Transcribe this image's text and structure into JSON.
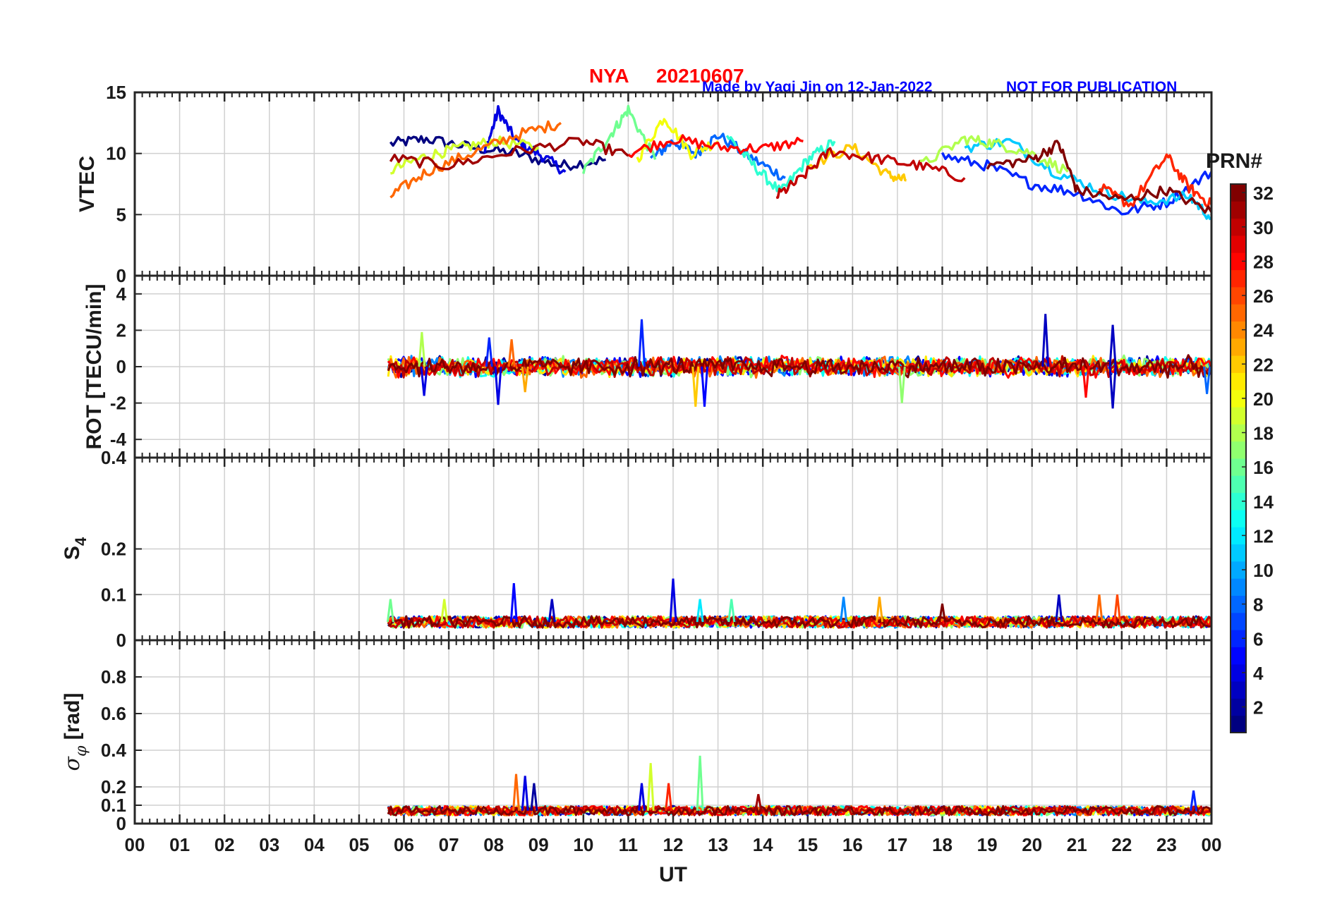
{
  "title": {
    "station": "NYA",
    "date": "20210607",
    "credit": "Made by Yaqi Jin on 12-Jan-2022",
    "notice": "NOT FOR PUBLICATION",
    "station_color": "#ff0000",
    "credit_color": "#0000ff"
  },
  "x_axis": {
    "label": "UT",
    "range": [
      0,
      24
    ],
    "tick_labels": [
      "00",
      "01",
      "02",
      "03",
      "04",
      "05",
      "06",
      "07",
      "08",
      "09",
      "10",
      "11",
      "12",
      "13",
      "14",
      "15",
      "16",
      "17",
      "18",
      "19",
      "20",
      "21",
      "22",
      "23",
      "00"
    ]
  },
  "colorbar": {
    "label": "PRN#",
    "range": [
      1,
      32
    ],
    "tick_labels": [
      "2",
      "4",
      "6",
      "8",
      "10",
      "12",
      "14",
      "16",
      "18",
      "20",
      "22",
      "24",
      "26",
      "28",
      "30",
      "32"
    ]
  },
  "chart_data": [
    {
      "type": "line",
      "panel": "vtec",
      "ylabel": "VTEC",
      "ylim": [
        0,
        15
      ],
      "yticks": [
        "0",
        "5",
        "10",
        "15"
      ],
      "grid": true,
      "x_start": 5.65,
      "x_end": 24.0,
      "series": [
        {
          "name": "PRN 1",
          "prn": 1,
          "x": [
            5.7,
            6.5,
            7.5,
            8.5,
            9.5,
            10.5
          ],
          "y": [
            10.8,
            11.2,
            10.5,
            10.0,
            9.0,
            9.5
          ]
        },
        {
          "name": "PRN 4",
          "prn": 4,
          "x": [
            7.8,
            8.1,
            8.5,
            9.0,
            9.6
          ],
          "y": [
            10.0,
            13.5,
            11.0,
            10.0,
            8.5
          ]
        },
        {
          "name": "PRN 8",
          "prn": 8,
          "x": [
            11.5,
            12.0,
            12.5,
            13.0,
            13.8,
            14.5
          ],
          "y": [
            9.5,
            11.0,
            10.0,
            11.5,
            9.5,
            8.0
          ]
        },
        {
          "name": "PRN 14",
          "prn": 14,
          "x": [
            13.2,
            13.8,
            14.4,
            15.0,
            15.6
          ],
          "y": [
            11.5,
            9.0,
            6.8,
            9.5,
            11.0
          ]
        },
        {
          "name": "PRN 16",
          "prn": 16,
          "x": [
            10.0,
            10.6,
            11.0,
            11.6
          ],
          "y": [
            8.5,
            11.5,
            13.6,
            9.5
          ]
        },
        {
          "name": "PRN 19",
          "prn": 19,
          "x": [
            5.7,
            6.5,
            7.2,
            8.0,
            9.0
          ],
          "y": [
            8.6,
            9.8,
            10.4,
            11.0,
            10.5
          ]
        },
        {
          "name": "PRN 20",
          "prn": 20,
          "x": [
            11.2,
            11.8,
            12.4,
            13.0
          ],
          "y": [
            9.5,
            13.0,
            10.0,
            11.0
          ]
        },
        {
          "name": "PRN 22",
          "prn": 22,
          "x": [
            15.0,
            16.0,
            16.8,
            17.2
          ],
          "y": [
            9.0,
            10.5,
            8.2,
            7.8
          ]
        },
        {
          "name": "PRN 25",
          "prn": 25,
          "x": [
            5.7,
            6.5,
            7.5,
            8.5,
            9.5
          ],
          "y": [
            6.5,
            8.5,
            10.0,
            11.5,
            12.5
          ]
        },
        {
          "name": "PRN 28",
          "prn": 28,
          "x": [
            11.0,
            12.0,
            13.0,
            14.0,
            14.9
          ],
          "y": [
            10.0,
            11.2,
            10.5,
            10.4,
            11.0
          ]
        },
        {
          "name": "PRN 31",
          "prn": 31,
          "x": [
            5.7,
            7.0,
            8.5,
            10.0,
            11.0
          ],
          "y": [
            9.6,
            9.0,
            10.2,
            11.0,
            9.8
          ]
        },
        {
          "name": "PRN 30",
          "prn": 30,
          "x": [
            14.3,
            14.8,
            15.5,
            16.5,
            17.5,
            18.5
          ],
          "y": [
            6.5,
            7.8,
            10.2,
            9.6,
            9.0,
            8.0
          ]
        },
        {
          "name": "PRN 6",
          "prn": 6,
          "x": [
            18.0,
            19.0,
            20.0,
            21.0,
            22.0,
            23.0,
            24.0
          ],
          "y": [
            9.8,
            9.0,
            7.5,
            6.8,
            5.2,
            6.0,
            8.5
          ]
        },
        {
          "name": "PRN 11",
          "prn": 11,
          "x": [
            18.5,
            19.5,
            20.5,
            21.5,
            22.5,
            23.5,
            24.0
          ],
          "y": [
            10.5,
            11.0,
            8.5,
            7.0,
            6.0,
            6.5,
            4.7
          ]
        },
        {
          "name": "PRN 18",
          "prn": 18,
          "x": [
            17.5,
            18.5,
            19.2,
            20.0,
            20.8
          ],
          "y": [
            9.0,
            11.2,
            10.8,
            10.0,
            8.5
          ]
        },
        {
          "name": "PRN 27",
          "prn": 27,
          "x": [
            21.5,
            22.2,
            23.0,
            23.5,
            24.0
          ],
          "y": [
            7.2,
            5.8,
            9.8,
            7.2,
            5.8
          ]
        },
        {
          "name": "PRN 32",
          "prn": 32,
          "x": [
            19.0,
            20.0,
            20.6,
            21.0,
            22.0,
            23.0,
            24.0
          ],
          "y": [
            9.0,
            9.5,
            10.8,
            7.0,
            6.2,
            7.0,
            5.2
          ]
        }
      ]
    },
    {
      "type": "line",
      "panel": "rot",
      "ylabel": "ROT [TECU/min]",
      "ylim": [
        -5,
        5
      ],
      "yticks": [
        "-4",
        "-2",
        "0",
        "2",
        "4"
      ],
      "grid": true,
      "x_start": 5.65,
      "x_end": 24.0,
      "typical_amplitude": 0.4,
      "spikes": [
        {
          "x": 6.4,
          "y": 1.9,
          "prn": 18
        },
        {
          "x": 6.45,
          "y": -1.6,
          "prn": 4
        },
        {
          "x": 7.9,
          "y": 1.6,
          "prn": 6
        },
        {
          "x": 8.1,
          "y": -2.1,
          "prn": 4
        },
        {
          "x": 8.4,
          "y": 1.5,
          "prn": 25
        },
        {
          "x": 8.7,
          "y": -1.4,
          "prn": 23
        },
        {
          "x": 11.3,
          "y": 2.6,
          "prn": 6
        },
        {
          "x": 12.5,
          "y": -2.2,
          "prn": 22
        },
        {
          "x": 12.7,
          "y": -2.2,
          "prn": 5
        },
        {
          "x": 17.1,
          "y": -2.0,
          "prn": 17
        },
        {
          "x": 20.3,
          "y": 2.9,
          "prn": 3
        },
        {
          "x": 21.2,
          "y": -1.7,
          "prn": 28
        },
        {
          "x": 21.8,
          "y": 2.3,
          "prn": 3
        },
        {
          "x": 21.8,
          "y": -2.3,
          "prn": 3
        },
        {
          "x": 23.9,
          "y": -1.5,
          "prn": 8
        }
      ]
    },
    {
      "type": "line",
      "panel": "s4",
      "ylabel": "S4",
      "ylim": [
        0,
        0.4
      ],
      "yticks": [
        "0",
        "0.1",
        "0.2",
        "0.4"
      ],
      "grid": true,
      "x_start": 5.65,
      "x_end": 24.0,
      "baseline": 0.04,
      "spikes": [
        {
          "x": 5.7,
          "y": 0.09,
          "prn": 16
        },
        {
          "x": 6.9,
          "y": 0.09,
          "prn": 19
        },
        {
          "x": 8.45,
          "y": 0.125,
          "prn": 5
        },
        {
          "x": 9.3,
          "y": 0.09,
          "prn": 3
        },
        {
          "x": 12.0,
          "y": 0.135,
          "prn": 4
        },
        {
          "x": 12.6,
          "y": 0.09,
          "prn": 12
        },
        {
          "x": 13.3,
          "y": 0.09,
          "prn": 15
        },
        {
          "x": 15.8,
          "y": 0.095,
          "prn": 9
        },
        {
          "x": 16.6,
          "y": 0.095,
          "prn": 23
        },
        {
          "x": 18.0,
          "y": 0.08,
          "prn": 32
        },
        {
          "x": 20.6,
          "y": 0.1,
          "prn": 3
        },
        {
          "x": 21.5,
          "y": 0.1,
          "prn": 25
        },
        {
          "x": 21.9,
          "y": 0.1,
          "prn": 26
        }
      ]
    },
    {
      "type": "line",
      "panel": "sigma_phi",
      "ylabel": "σφ [rad]",
      "ylim": [
        0,
        1
      ],
      "yticks": [
        "0",
        "0.1",
        "0.2",
        "0.4",
        "0.6",
        "0.8"
      ],
      "grid": true,
      "x_start": 5.65,
      "x_end": 24.0,
      "baseline": 0.07,
      "spikes": [
        {
          "x": 8.5,
          "y": 0.27,
          "prn": 25
        },
        {
          "x": 8.7,
          "y": 0.26,
          "prn": 4
        },
        {
          "x": 8.9,
          "y": 0.22,
          "prn": 2
        },
        {
          "x": 11.5,
          "y": 0.33,
          "prn": 19
        },
        {
          "x": 11.3,
          "y": 0.22,
          "prn": 4
        },
        {
          "x": 11.9,
          "y": 0.22,
          "prn": 27
        },
        {
          "x": 12.6,
          "y": 0.37,
          "prn": 16
        },
        {
          "x": 13.9,
          "y": 0.16,
          "prn": 31
        },
        {
          "x": 23.6,
          "y": 0.18,
          "prn": 6
        }
      ]
    }
  ]
}
